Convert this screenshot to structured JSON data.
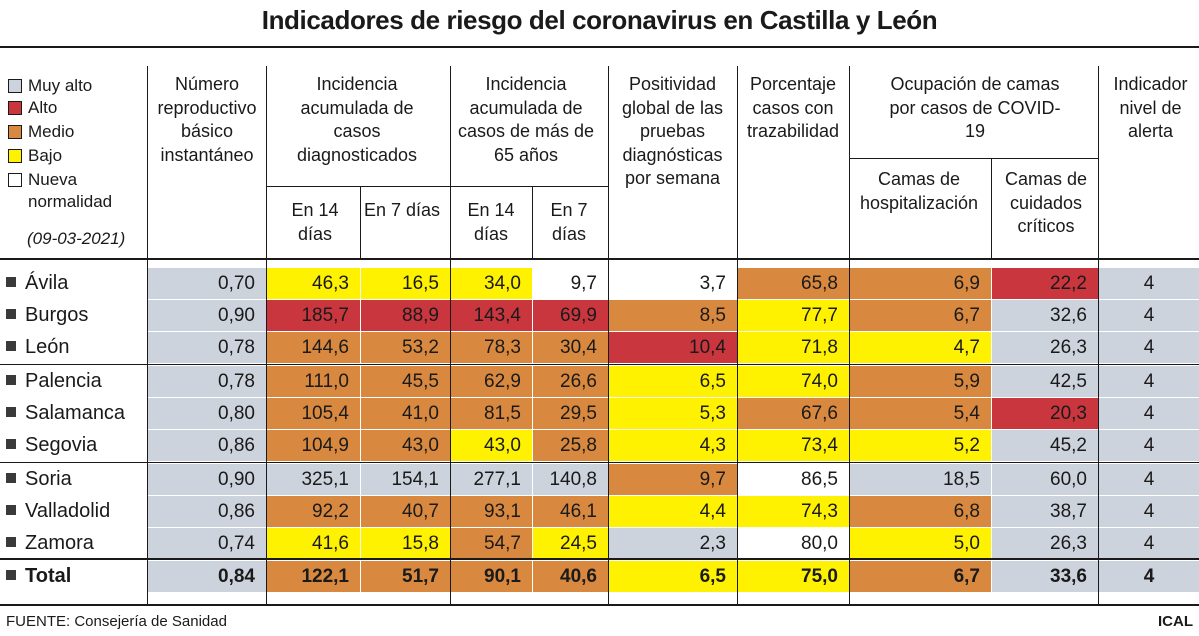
{
  "title": "Indicadores de riesgo del coronavirus en Castilla y León",
  "colors": {
    "Muy alto": "#cdd3dd",
    "Alto": "#c9363e",
    "Medio": "#d8893f",
    "Bajo": "#fff200",
    "Nueva normalidad": "#ffffff"
  },
  "legend": {
    "items": [
      {
        "label": "Muy alto",
        "level": "Muy alto"
      },
      {
        "label": "Alto",
        "level": "Alto"
      },
      {
        "label": "Medio",
        "level": "Medio"
      },
      {
        "label": "Bajo",
        "level": "Bajo"
      },
      {
        "label": "Nueva",
        "level": "Nueva normalidad"
      },
      {
        "label": "normalidad",
        "level": null
      }
    ],
    "date": "(09-03-2021)"
  },
  "headers": {
    "reproductivo": "Número reproductivo básico instantáneo",
    "incidencia": "Incidencia acumulada de casos diagnosticados",
    "incidencia65": "Incidencia acumulada de casos de más de 65 años",
    "positividad": "Positividad global de las pruebas diagnósticas por semana",
    "trazabilidad": "Porcentaje casos con trazabilidad",
    "ocupacion": "Ocupación de camas por casos de COVID-19",
    "en14": "En 14 días",
    "en7": "En 7 días",
    "hosp": "Camas de hospitalización",
    "uci": "Camas de cuidados críticos",
    "alerta": "Indicador nivel de alerta"
  },
  "footer": {
    "source": "FUENTE: Consejería de Sanidad",
    "credit": "ICAL"
  },
  "chart_data": {
    "type": "table",
    "title": "Indicadores de riesgo del coronavirus en Castilla y León",
    "date": "(09-03-2021)",
    "columns": [
      "Número reproductivo básico instantáneo",
      "Incidencia acumulada de casos diagnosticados — En 14 días",
      "Incidencia acumulada de casos diagnosticados — En 7 días",
      "Incidencia acumulada de casos de más de 65 años — En 14 días",
      "Incidencia acumulada de casos de más de 65 años — En 7 días",
      "Positividad global de las pruebas diagnósticas por semana",
      "Porcentaje casos con trazabilidad",
      "Camas de hospitalización",
      "Camas de cuidados críticos",
      "Indicador nivel de alerta"
    ],
    "rows": [
      {
        "name": "Ávila",
        "cells": [
          {
            "v": "0,70",
            "c": "Muy alto"
          },
          {
            "v": "46,3",
            "c": "Bajo"
          },
          {
            "v": "16,5",
            "c": "Bajo"
          },
          {
            "v": "34,0",
            "c": "Bajo"
          },
          {
            "v": "9,7",
            "c": "Nueva normalidad"
          },
          {
            "v": "3,7",
            "c": "Nueva normalidad"
          },
          {
            "v": "65,8",
            "c": "Medio"
          },
          {
            "v": "6,9",
            "c": "Medio"
          },
          {
            "v": "22,2",
            "c": "Alto"
          },
          {
            "v": "4",
            "c": "Muy alto"
          }
        ]
      },
      {
        "name": "Burgos",
        "cells": [
          {
            "v": "0,90",
            "c": "Muy alto"
          },
          {
            "v": "185,7",
            "c": "Alto"
          },
          {
            "v": "88,9",
            "c": "Alto"
          },
          {
            "v": "143,4",
            "c": "Alto"
          },
          {
            "v": "69,9",
            "c": "Alto"
          },
          {
            "v": "8,5",
            "c": "Medio"
          },
          {
            "v": "77,7",
            "c": "Bajo"
          },
          {
            "v": "6,7",
            "c": "Medio"
          },
          {
            "v": "32,6",
            "c": "Muy alto"
          },
          {
            "v": "4",
            "c": "Muy alto"
          }
        ]
      },
      {
        "name": "León",
        "cells": [
          {
            "v": "0,78",
            "c": "Muy alto"
          },
          {
            "v": "144,6",
            "c": "Medio"
          },
          {
            "v": "53,2",
            "c": "Medio"
          },
          {
            "v": "78,3",
            "c": "Medio"
          },
          {
            "v": "30,4",
            "c": "Medio"
          },
          {
            "v": "10,4",
            "c": "Alto"
          },
          {
            "v": "71,8",
            "c": "Bajo"
          },
          {
            "v": "4,7",
            "c": "Bajo"
          },
          {
            "v": "26,3",
            "c": "Muy alto"
          },
          {
            "v": "4",
            "c": "Muy alto"
          }
        ]
      },
      {
        "name": "Palencia",
        "cells": [
          {
            "v": "0,78",
            "c": "Muy alto"
          },
          {
            "v": "111,0",
            "c": "Medio"
          },
          {
            "v": "45,5",
            "c": "Medio"
          },
          {
            "v": "62,9",
            "c": "Medio"
          },
          {
            "v": "26,6",
            "c": "Medio"
          },
          {
            "v": "6,5",
            "c": "Bajo"
          },
          {
            "v": "74,0",
            "c": "Bajo"
          },
          {
            "v": "5,9",
            "c": "Medio"
          },
          {
            "v": "42,5",
            "c": "Muy alto"
          },
          {
            "v": "4",
            "c": "Muy alto"
          }
        ]
      },
      {
        "name": "Salamanca",
        "cells": [
          {
            "v": "0,80",
            "c": "Muy alto"
          },
          {
            "v": "105,4",
            "c": "Medio"
          },
          {
            "v": "41,0",
            "c": "Medio"
          },
          {
            "v": "81,5",
            "c": "Medio"
          },
          {
            "v": "29,5",
            "c": "Medio"
          },
          {
            "v": "5,3",
            "c": "Bajo"
          },
          {
            "v": "67,6",
            "c": "Medio"
          },
          {
            "v": "5,4",
            "c": "Medio"
          },
          {
            "v": "20,3",
            "c": "Alto"
          },
          {
            "v": "4",
            "c": "Muy alto"
          }
        ]
      },
      {
        "name": "Segovia",
        "cells": [
          {
            "v": "0,86",
            "c": "Muy alto"
          },
          {
            "v": "104,9",
            "c": "Medio"
          },
          {
            "v": "43,0",
            "c": "Medio"
          },
          {
            "v": "43,0",
            "c": "Bajo"
          },
          {
            "v": "25,8",
            "c": "Medio"
          },
          {
            "v": "4,3",
            "c": "Bajo"
          },
          {
            "v": "73,4",
            "c": "Bajo"
          },
          {
            "v": "5,2",
            "c": "Bajo"
          },
          {
            "v": "45,2",
            "c": "Muy alto"
          },
          {
            "v": "4",
            "c": "Muy alto"
          }
        ]
      },
      {
        "name": "Soria",
        "cells": [
          {
            "v": "0,90",
            "c": "Muy alto"
          },
          {
            "v": "325,1",
            "c": "Muy alto"
          },
          {
            "v": "154,1",
            "c": "Muy alto"
          },
          {
            "v": "277,1",
            "c": "Muy alto"
          },
          {
            "v": "140,8",
            "c": "Muy alto"
          },
          {
            "v": "9,7",
            "c": "Medio"
          },
          {
            "v": "86,5",
            "c": "Nueva normalidad"
          },
          {
            "v": "18,5",
            "c": "Muy alto"
          },
          {
            "v": "60,0",
            "c": "Muy alto"
          },
          {
            "v": "4",
            "c": "Muy alto"
          }
        ]
      },
      {
        "name": "Valladolid",
        "cells": [
          {
            "v": "0,86",
            "c": "Muy alto"
          },
          {
            "v": "92,2",
            "c": "Medio"
          },
          {
            "v": "40,7",
            "c": "Medio"
          },
          {
            "v": "93,1",
            "c": "Medio"
          },
          {
            "v": "46,1",
            "c": "Medio"
          },
          {
            "v": "4,4",
            "c": "Bajo"
          },
          {
            "v": "74,3",
            "c": "Bajo"
          },
          {
            "v": "6,8",
            "c": "Medio"
          },
          {
            "v": "38,7",
            "c": "Muy alto"
          },
          {
            "v": "4",
            "c": "Muy alto"
          }
        ]
      },
      {
        "name": "Zamora",
        "cells": [
          {
            "v": "0,74",
            "c": "Muy alto"
          },
          {
            "v": "41,6",
            "c": "Bajo"
          },
          {
            "v": "15,8",
            "c": "Bajo"
          },
          {
            "v": "54,7",
            "c": "Medio"
          },
          {
            "v": "24,5",
            "c": "Bajo"
          },
          {
            "v": "2,3",
            "c": "Muy alto"
          },
          {
            "v": "80,0",
            "c": "Nueva normalidad"
          },
          {
            "v": "5,0",
            "c": "Bajo"
          },
          {
            "v": "26,3",
            "c": "Muy alto"
          },
          {
            "v": "4",
            "c": "Muy alto"
          }
        ]
      },
      {
        "name": "Total",
        "bold": true,
        "cells": [
          {
            "v": "0,84",
            "c": "Muy alto"
          },
          {
            "v": "122,1",
            "c": "Medio"
          },
          {
            "v": "51,7",
            "c": "Medio"
          },
          {
            "v": "90,1",
            "c": "Medio"
          },
          {
            "v": "40,6",
            "c": "Medio"
          },
          {
            "v": "6,5",
            "c": "Bajo"
          },
          {
            "v": "75,0",
            "c": "Bajo"
          },
          {
            "v": "6,7",
            "c": "Medio"
          },
          {
            "v": "33,6",
            "c": "Muy alto"
          },
          {
            "v": "4",
            "c": "Muy alto"
          }
        ]
      }
    ]
  }
}
